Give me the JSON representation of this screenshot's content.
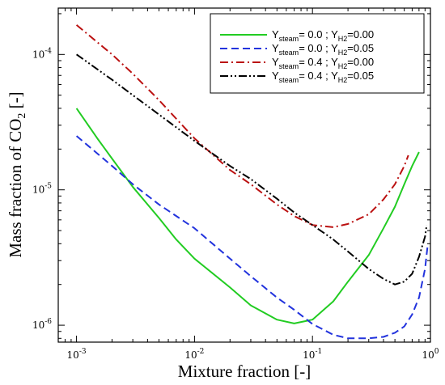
{
  "chart_data": {
    "type": "line",
    "xlabel": "Mixture fraction [-]",
    "ylabel": {
      "prefix": "Mass fraction of CO",
      "sub": "2",
      "suffix": " [-]"
    },
    "xscale": "log",
    "yscale": "log",
    "xlim": [
      0.0007,
      1.0
    ],
    "ylim": [
      7.5e-07,
      0.00022
    ],
    "grid": false,
    "legend_position": "top-right",
    "x_ticks": [
      {
        "value": 0.001,
        "base": "10",
        "exp": "-3"
      },
      {
        "value": 0.01,
        "base": "10",
        "exp": "-2"
      },
      {
        "value": 0.1,
        "base": "10",
        "exp": "-1"
      },
      {
        "value": 1,
        "base": "10",
        "exp": "0"
      }
    ],
    "y_ticks": [
      {
        "value": 1e-06,
        "base": "10",
        "exp": "-6"
      },
      {
        "value": 1e-05,
        "base": "10",
        "exp": "-5"
      },
      {
        "value": 0.0001,
        "base": "10",
        "exp": "-4"
      }
    ],
    "series": [
      {
        "legend": {
          "t1": "Y",
          "s1": "steam",
          "t2": "=  0.0 ; Y",
          "s2": "H2",
          "t3": "=0.00"
        },
        "color": "#22cc22",
        "dash": "solid",
        "points": [
          [
            0.001,
            4e-05
          ],
          [
            0.0015,
            2.4e-05
          ],
          [
            0.002,
            1.7e-05
          ],
          [
            0.003,
            1.05e-05
          ],
          [
            0.005,
            6.2e-06
          ],
          [
            0.007,
            4.3e-06
          ],
          [
            0.01,
            3.1e-06
          ],
          [
            0.02,
            1.9e-06
          ],
          [
            0.03,
            1.4e-06
          ],
          [
            0.05,
            1.1e-06
          ],
          [
            0.07,
            1.03e-06
          ],
          [
            0.1,
            1.1e-06
          ],
          [
            0.15,
            1.5e-06
          ],
          [
            0.2,
            2.1e-06
          ],
          [
            0.3,
            3.3e-06
          ],
          [
            0.4,
            5.2e-06
          ],
          [
            0.5,
            7.5e-06
          ],
          [
            0.6,
            1.1e-05
          ],
          [
            0.7,
            1.5e-05
          ],
          [
            0.8,
            1.9e-05
          ]
        ]
      },
      {
        "legend": {
          "t1": "Y",
          "s1": "steam",
          "t2": "=  0.0 ; Y",
          "s2": "H2",
          "t3": "=0.05"
        },
        "color": "#2233dd",
        "dash": "dashed",
        "points": [
          [
            0.001,
            2.5e-05
          ],
          [
            0.002,
            1.5e-05
          ],
          [
            0.003,
            1.1e-05
          ],
          [
            0.005,
            7.8e-06
          ],
          [
            0.01,
            5.2e-06
          ],
          [
            0.02,
            3.1e-06
          ],
          [
            0.03,
            2.3e-06
          ],
          [
            0.05,
            1.6e-06
          ],
          [
            0.07,
            1.3e-06
          ],
          [
            0.1,
            1.02e-06
          ],
          [
            0.15,
            8.5e-07
          ],
          [
            0.2,
            8e-07
          ],
          [
            0.3,
            8e-07
          ],
          [
            0.4,
            8.2e-07
          ],
          [
            0.5,
            8.8e-07
          ],
          [
            0.6,
            9.8e-07
          ],
          [
            0.7,
            1.2e-06
          ],
          [
            0.8,
            1.6e-06
          ],
          [
            0.9,
            2.6e-06
          ],
          [
            0.95,
            4e-06
          ]
        ]
      },
      {
        "legend": {
          "t1": "Y",
          "s1": "steam",
          "t2": "=  0.4 ; Y",
          "s2": "H2",
          "t3": "=0.00"
        },
        "color": "#bb1111",
        "dash": "dashdot",
        "points": [
          [
            0.001,
            0.000165
          ],
          [
            0.002,
            0.0001
          ],
          [
            0.003,
            7.2e-05
          ],
          [
            0.005,
            4.6e-05
          ],
          [
            0.01,
            2.4e-05
          ],
          [
            0.02,
            1.4e-05
          ],
          [
            0.03,
            1.1e-05
          ],
          [
            0.05,
            7.8e-06
          ],
          [
            0.07,
            6.4e-06
          ],
          [
            0.1,
            5.5e-06
          ],
          [
            0.15,
            5.3e-06
          ],
          [
            0.2,
            5.6e-06
          ],
          [
            0.3,
            6.6e-06
          ],
          [
            0.4,
            8.5e-06
          ],
          [
            0.5,
            1.1e-05
          ],
          [
            0.6,
            1.5e-05
          ],
          [
            0.65,
            1.8e-05
          ]
        ]
      },
      {
        "legend": {
          "t1": "Y",
          "s1": "steam",
          "t2": "=  0.4 ; Y",
          "s2": "H2",
          "t3": "=0.05"
        },
        "color": "#000000",
        "dash": "dashdotdot",
        "points": [
          [
            0.001,
            0.0001
          ],
          [
            0.002,
            6.5e-05
          ],
          [
            0.003,
            5e-05
          ],
          [
            0.005,
            3.6e-05
          ],
          [
            0.01,
            2.3e-05
          ],
          [
            0.02,
            1.5e-05
          ],
          [
            0.03,
            1.2e-05
          ],
          [
            0.05,
            8.6e-06
          ],
          [
            0.07,
            6.8e-06
          ],
          [
            0.1,
            5.5e-06
          ],
          [
            0.15,
            4.3e-06
          ],
          [
            0.2,
            3.5e-06
          ],
          [
            0.3,
            2.6e-06
          ],
          [
            0.4,
            2.2e-06
          ],
          [
            0.5,
            2e-06
          ],
          [
            0.6,
            2.1e-06
          ],
          [
            0.7,
            2.4e-06
          ],
          [
            0.8,
            3.2e-06
          ],
          [
            0.9,
            4.5e-06
          ],
          [
            0.93,
            5.5e-06
          ]
        ]
      }
    ]
  }
}
